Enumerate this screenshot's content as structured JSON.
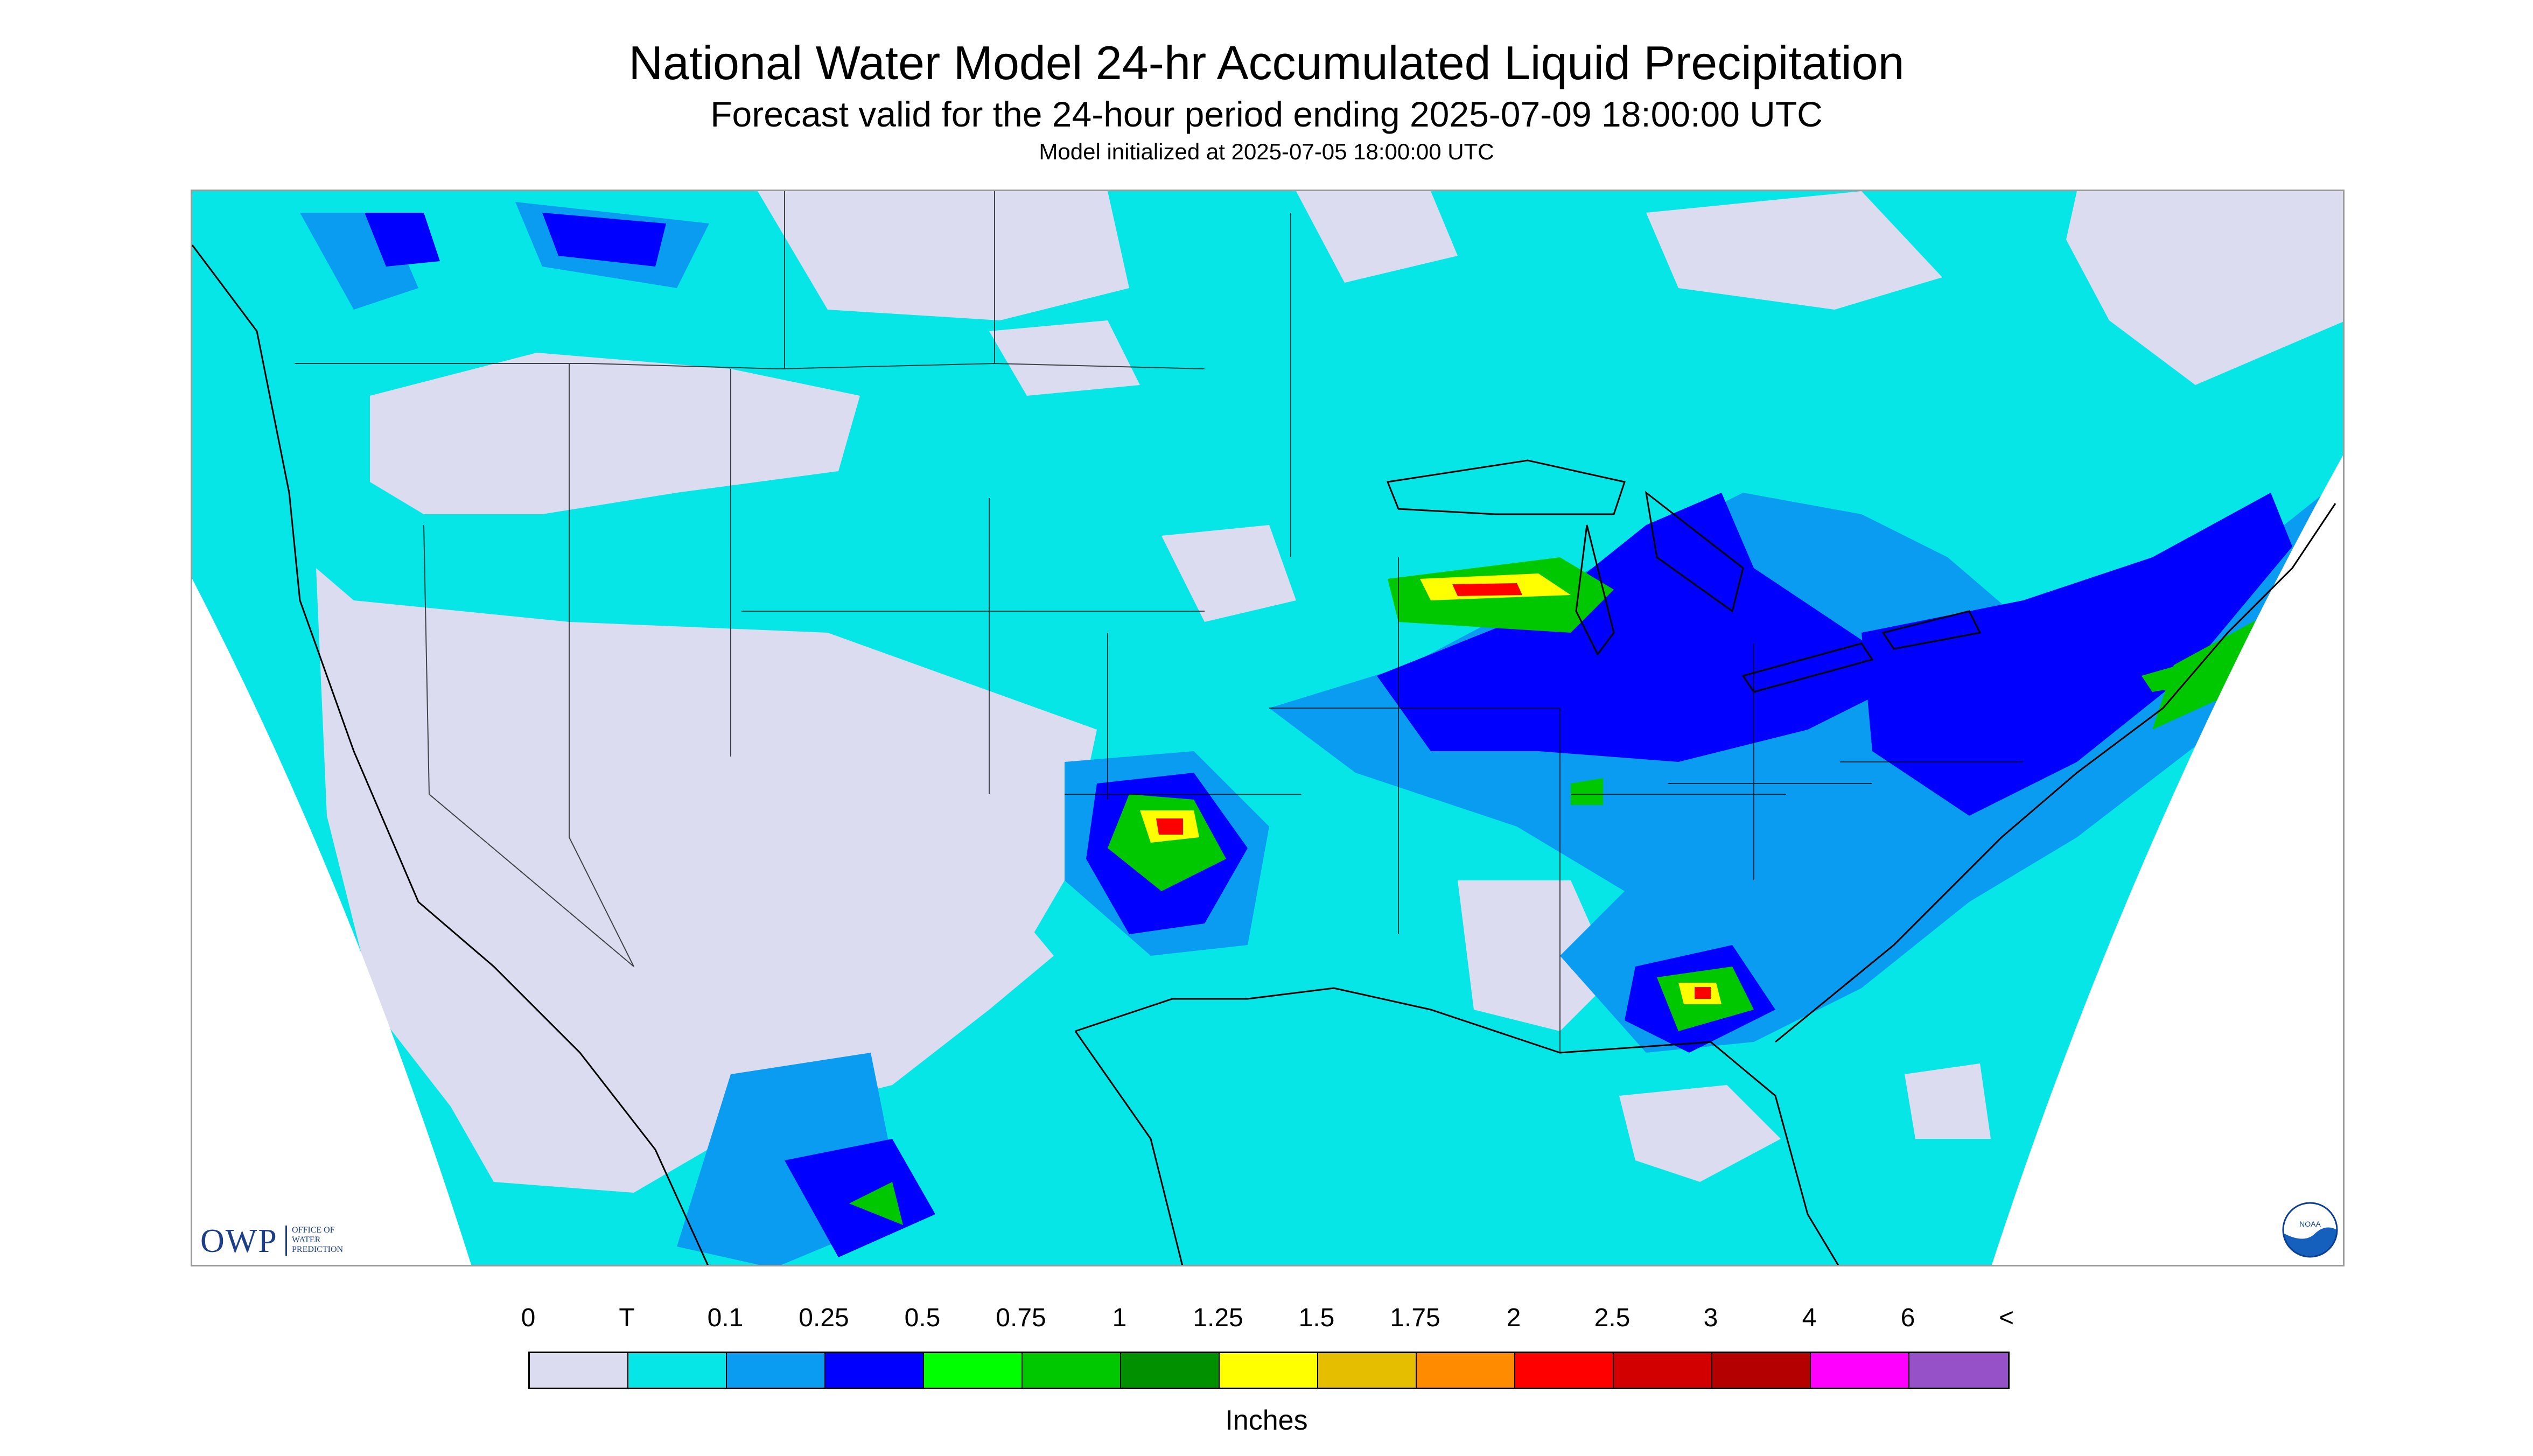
{
  "header": {
    "title": "National Water Model 24-hr Accumulated Liquid Precipitation",
    "subtitle": "Forecast valid for the 24-hour period ending 2025-07-09 18:00:00 UTC",
    "init_line": "Model initialized at 2025-07-05 18:00:00 UTC"
  },
  "logos": {
    "owp_text": "OWP",
    "owp_sub": [
      "OFFICE OF",
      "WATER",
      "PREDICTION"
    ],
    "noaa_text": "NOAA"
  },
  "legend": {
    "labels": [
      "0",
      "T",
      "0.1",
      "0.25",
      "0.5",
      "0.75",
      "1",
      "1.25",
      "1.5",
      "1.75",
      "2",
      "2.5",
      "3",
      "4",
      "6",
      "<"
    ],
    "colors": [
      "#dcdcf0",
      "#06e6e6",
      "#0a9cf0",
      "#0000ff",
      "#00ff00",
      "#00c800",
      "#009000",
      "#ffff00",
      "#e6be00",
      "#ff8c00",
      "#ff0000",
      "#d20000",
      "#b40000",
      "#ff00ff",
      "#9650c8"
    ],
    "unit": "Inches"
  },
  "map": {
    "no_data_color": "#ffffff",
    "boundary_color": "#000000"
  }
}
